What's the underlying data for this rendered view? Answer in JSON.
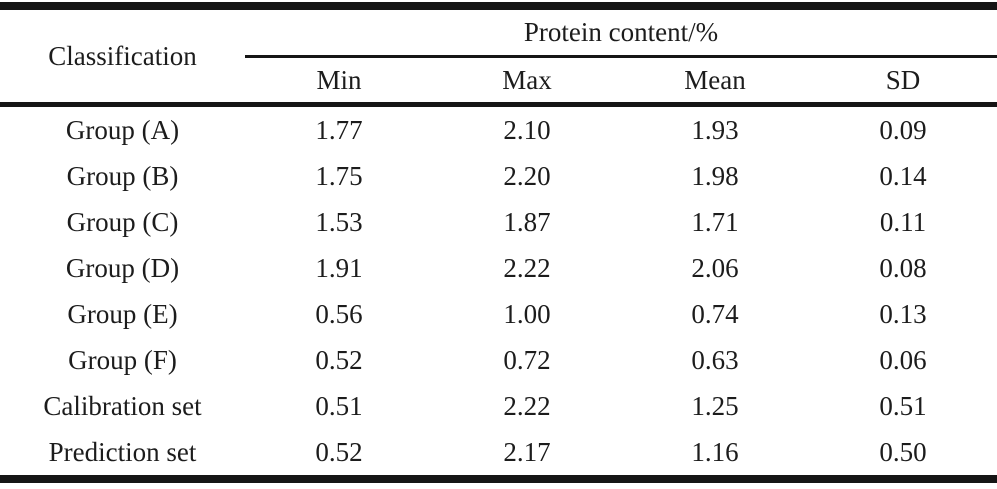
{
  "table": {
    "classification_header": "Classification",
    "group_header": "Protein content/%",
    "columns": [
      "Min",
      "Max",
      "Mean",
      "SD"
    ],
    "rows": [
      {
        "label": "Group (A)",
        "values": [
          "1.77",
          "2.10",
          "1.93",
          "0.09"
        ]
      },
      {
        "label": "Group (B)",
        "values": [
          "1.75",
          "2.20",
          "1.98",
          "0.14"
        ]
      },
      {
        "label": "Group (C)",
        "values": [
          "1.53",
          "1.87",
          "1.71",
          "0.11"
        ]
      },
      {
        "label": "Group (D)",
        "values": [
          "1.91",
          "2.22",
          "2.06",
          "0.08"
        ]
      },
      {
        "label": "Group (E)",
        "values": [
          "0.56",
          "1.00",
          "0.74",
          "0.13"
        ]
      },
      {
        "label": "Group (F)",
        "values": [
          "0.52",
          "0.72",
          "0.63",
          "0.06"
        ]
      },
      {
        "label": "Calibration set",
        "values": [
          "0.51",
          "2.22",
          "1.25",
          "0.51"
        ]
      },
      {
        "label": "Prediction set",
        "values": [
          "0.52",
          "2.17",
          "1.16",
          "0.50"
        ]
      }
    ],
    "rule_color": "#151515",
    "text_color": "#1c1c1c",
    "background_color": "#ffffff"
  },
  "chart_data": {
    "type": "table",
    "title": "Protein content/%",
    "row_header": "Classification",
    "columns": [
      "Min",
      "Max",
      "Mean",
      "SD"
    ],
    "rows": [
      [
        "Group (A)",
        1.77,
        2.1,
        1.93,
        0.09
      ],
      [
        "Group (B)",
        1.75,
        2.2,
        1.98,
        0.14
      ],
      [
        "Group (C)",
        1.53,
        1.87,
        1.71,
        0.11
      ],
      [
        "Group (D)",
        1.91,
        2.22,
        2.06,
        0.08
      ],
      [
        "Group (E)",
        0.56,
        1.0,
        0.74,
        0.13
      ],
      [
        "Group (F)",
        0.52,
        0.72,
        0.63,
        0.06
      ],
      [
        "Calibration set",
        0.51,
        2.22,
        1.25,
        0.51
      ],
      [
        "Prediction set",
        0.52,
        2.17,
        1.16,
        0.5
      ]
    ]
  }
}
